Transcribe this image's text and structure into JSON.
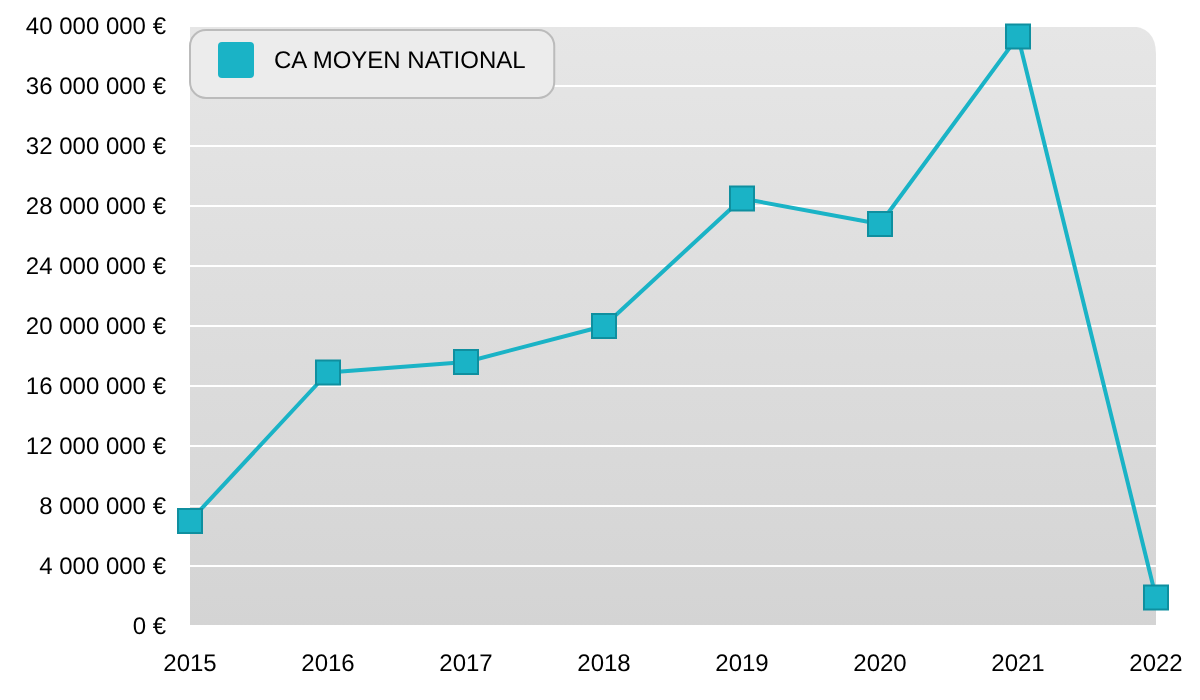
{
  "chart_data": {
    "type": "line",
    "x": [
      2015,
      2016,
      2017,
      2018,
      2019,
      2020,
      2021,
      2022
    ],
    "series": [
      {
        "name": "CA MOYEN NATIONAL",
        "color": "#1ab3c6",
        "values": [
          7000000,
          16900000,
          17600000,
          20000000,
          28500000,
          26800000,
          39300000,
          1900000
        ]
      }
    ],
    "xlim": [
      2015,
      2022
    ],
    "xticks": [
      2015,
      2016,
      2017,
      2018,
      2019,
      2020,
      2021,
      2022
    ],
    "ylim": [
      0,
      40000000
    ],
    "yticks": [
      {
        "value": 0,
        "label": "0 €"
      },
      {
        "value": 4000000,
        "label": "4 000 000 €"
      },
      {
        "value": 8000000,
        "label": "8 000 000 €"
      },
      {
        "value": 12000000,
        "label": "12 000 000 €"
      },
      {
        "value": 16000000,
        "label": "16 000 000 €"
      },
      {
        "value": 20000000,
        "label": "20 000 000 €"
      },
      {
        "value": 24000000,
        "label": "24 000 000 €"
      },
      {
        "value": 28000000,
        "label": "28 000 000 €"
      },
      {
        "value": 32000000,
        "label": "32 000 000 €"
      },
      {
        "value": 36000000,
        "label": "36 000 000 €"
      },
      {
        "value": 40000000,
        "label": "40 000 000 €"
      }
    ],
    "grid": "y",
    "legend": "top left",
    "marker": "square",
    "line_style": "solid"
  }
}
